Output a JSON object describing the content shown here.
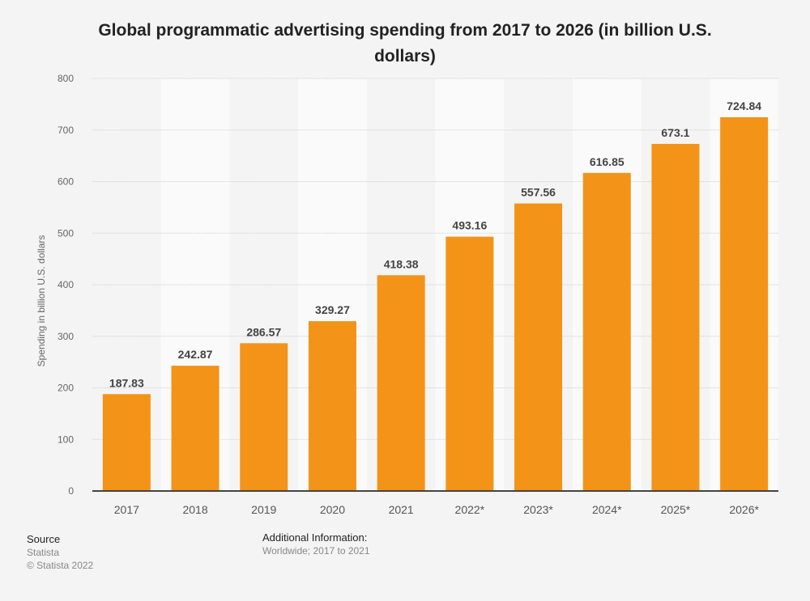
{
  "chart_data": {
    "type": "bar",
    "title": "Global programmatic advertising spending from 2017 to 2026 (in billion U.S. dollars)",
    "xlabel": "",
    "ylabel": "Spending in billion U.S. dollars",
    "ylim": [
      0,
      800
    ],
    "yticks": [
      0,
      100,
      200,
      300,
      400,
      500,
      600,
      700,
      800
    ],
    "categories": [
      "2017",
      "2018",
      "2019",
      "2020",
      "2021",
      "2022*",
      "2023*",
      "2024*",
      "2025*",
      "2026*"
    ],
    "values": [
      187.83,
      242.87,
      286.57,
      329.27,
      418.38,
      493.16,
      557.56,
      616.85,
      673.1,
      724.84
    ],
    "value_labels": [
      "187.83",
      "242.87",
      "286.57",
      "329.27",
      "418.38",
      "493.16",
      "557.56",
      "616.85",
      "673.1",
      "724.84"
    ],
    "grid": true,
    "bar_color": "#f39318"
  },
  "footer": {
    "source_heading": "Source",
    "source_name": "Statista",
    "copyright": "© Statista 2022",
    "additional_heading": "Additional Information:",
    "additional_text": "Worldwide; 2017 to 2021"
  }
}
